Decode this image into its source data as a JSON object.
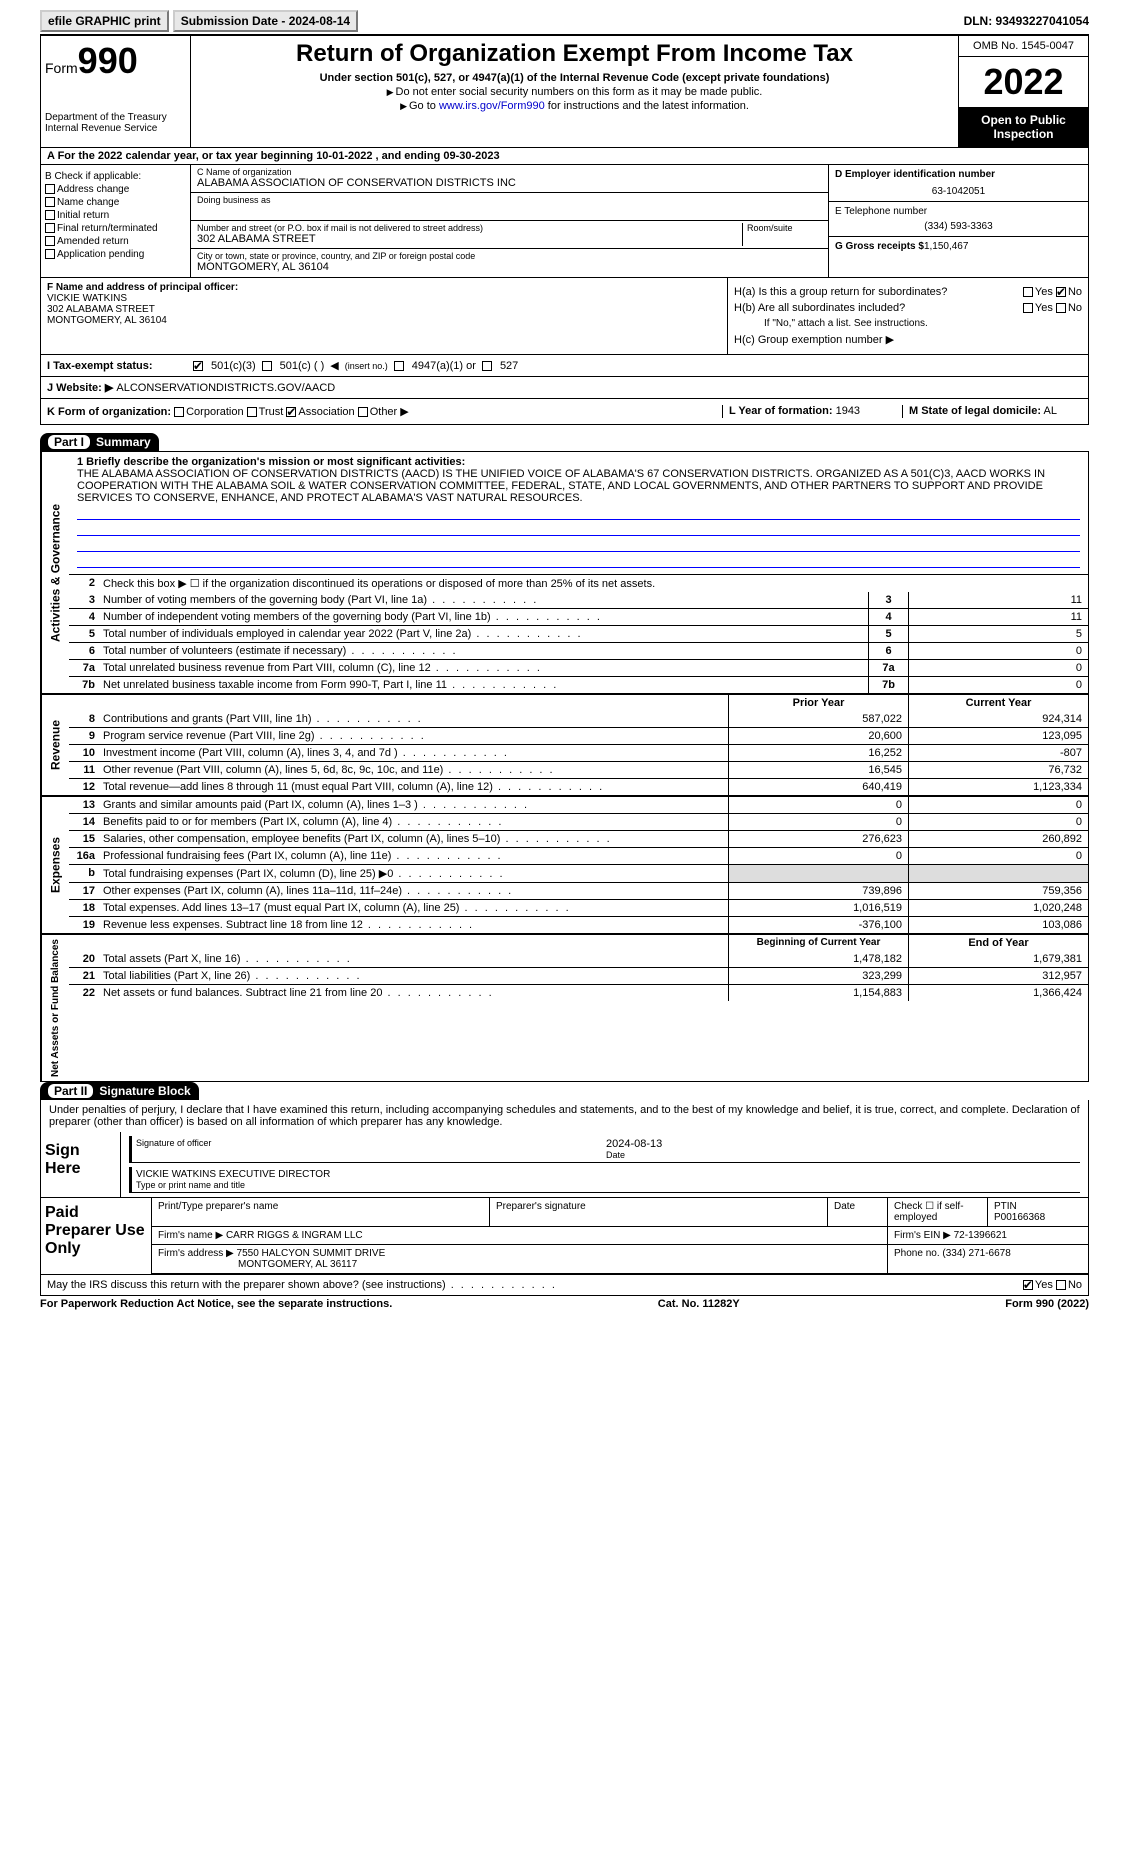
{
  "top": {
    "efile": "efile GRAPHIC print",
    "subdate_label": "Submission Date - 2024-08-14",
    "dln": "DLN: 93493227041054"
  },
  "header": {
    "form_word": "Form",
    "form_num": "990",
    "dept": "Department of the Treasury",
    "irs": "Internal Revenue Service",
    "title": "Return of Organization Exempt From Income Tax",
    "sub": "Under section 501(c), 527, or 4947(a)(1) of the Internal Revenue Code (except private foundations)",
    "note1": "Do not enter social security numbers on this form as it may be made public.",
    "note2_pre": "Go to ",
    "note2_link": "www.irs.gov/Form990",
    "note2_post": " for instructions and the latest information.",
    "omb": "OMB No. 1545-0047",
    "year": "2022",
    "open": "Open to Public Inspection"
  },
  "row_a": "A For the 2022 calendar year, or tax year beginning 10-01-2022     , and ending 09-30-2023",
  "col_b": {
    "hdr": "B Check if applicable:",
    "addr": "Address change",
    "name": "Name change",
    "init": "Initial return",
    "final": "Final return/terminated",
    "amend": "Amended return",
    "app": "Application pending"
  },
  "col_c": {
    "name_label": "C Name of organization",
    "name": "ALABAMA ASSOCIATION OF CONSERVATION DISTRICTS INC",
    "dba_label": "Doing business as",
    "street_label": "Number and street (or P.O. box if mail is not delivered to street address)",
    "street": "302 ALABAMA STREET",
    "room_label": "Room/suite",
    "city_label": "City or town, state or province, country, and ZIP or foreign postal code",
    "city": "MONTGOMERY, AL  36104"
  },
  "col_d": {
    "ein_label": "D Employer identification number",
    "ein": "63-1042051",
    "tel_label": "E Telephone number",
    "tel": "(334) 593-3363",
    "gross_label": "G Gross receipts $",
    "gross": "1,150,467"
  },
  "col_f": {
    "label": "F Name and address of principal officer:",
    "name": "VICKIE WATKINS",
    "street": "302 ALABAMA STREET",
    "city": "MONTGOMERY, AL  36104"
  },
  "col_h": {
    "ha": "H(a)  Is this a group return for subordinates?",
    "hb": "H(b)  Are all subordinates included?",
    "hb_note": "If \"No,\" attach a list. See instructions.",
    "hc": "H(c)  Group exemption number",
    "yes": "Yes",
    "no": "No"
  },
  "row_i": {
    "label": "I   Tax-exempt status:",
    "c3": "501(c)(3)",
    "c": "501(c) (   )",
    "ins": "(insert no.)",
    "a1": "4947(a)(1) or",
    "s527": "527"
  },
  "row_j": {
    "label": "J   Website:",
    "val": "ALCONSERVATIONDISTRICTS.GOV/AACD"
  },
  "row_k": {
    "label": "K Form of organization:",
    "corp": "Corporation",
    "trust": "Trust",
    "assoc": "Association",
    "other": "Other",
    "year_label": "L Year of formation:",
    "year": "1943",
    "state_label": "M State of legal domicile:",
    "state": "AL"
  },
  "part1": {
    "hdr_part": "Part I",
    "hdr_title": "Summary",
    "line1_label": "1 Briefly describe the organization's mission or most significant activities:",
    "mission": "THE ALABAMA ASSOCIATION OF CONSERVATION DISTRICTS (AACD) IS THE UNIFIED VOICE OF ALABAMA'S 67 CONSERVATION DISTRICTS. ORGANIZED AS A 501(C)3, AACD WORKS IN COOPERATION WITH THE ALABAMA SOIL & WATER CONSERVATION COMMITTEE, FEDERAL, STATE, AND LOCAL GOVERNMENTS, AND OTHER PARTNERS TO SUPPORT AND PROVIDE SERVICES TO CONSERVE, ENHANCE, AND PROTECT ALABAMA'S VAST NATURAL RESOURCES.",
    "line2": "Check this box ▶ ☐  if the organization discontinued its operations or disposed of more than 25% of its net assets.",
    "vlabel_gov": "Activities & Governance",
    "vlabel_rev": "Revenue",
    "vlabel_exp": "Expenses",
    "vlabel_net": "Net Assets or Fund Balances",
    "gov": [
      {
        "n": "3",
        "d": "Number of voting members of the governing body (Part VI, line 1a)",
        "b": "3",
        "v": "11"
      },
      {
        "n": "4",
        "d": "Number of independent voting members of the governing body (Part VI, line 1b)",
        "b": "4",
        "v": "11"
      },
      {
        "n": "5",
        "d": "Total number of individuals employed in calendar year 2022 (Part V, line 2a)",
        "b": "5",
        "v": "5"
      },
      {
        "n": "6",
        "d": "Total number of volunteers (estimate if necessary)",
        "b": "6",
        "v": "0"
      },
      {
        "n": "7a",
        "d": "Total unrelated business revenue from Part VIII, column (C), line 12",
        "b": "7a",
        "v": "0"
      },
      {
        "n": "7b",
        "d": "Net unrelated business taxable income from Form 990-T, Part I, line 11",
        "b": "7b",
        "v": "0"
      }
    ],
    "col_prior": "Prior Year",
    "col_curr": "Current Year",
    "rev": [
      {
        "n": "8",
        "d": "Contributions and grants (Part VIII, line 1h)",
        "p": "587,022",
        "c": "924,314"
      },
      {
        "n": "9",
        "d": "Program service revenue (Part VIII, line 2g)",
        "p": "20,600",
        "c": "123,095"
      },
      {
        "n": "10",
        "d": "Investment income (Part VIII, column (A), lines 3, 4, and 7d )",
        "p": "16,252",
        "c": "-807"
      },
      {
        "n": "11",
        "d": "Other revenue (Part VIII, column (A), lines 5, 6d, 8c, 9c, 10c, and 11e)",
        "p": "16,545",
        "c": "76,732"
      },
      {
        "n": "12",
        "d": "Total revenue—add lines 8 through 11 (must equal Part VIII, column (A), line 12)",
        "p": "640,419",
        "c": "1,123,334"
      }
    ],
    "exp": [
      {
        "n": "13",
        "d": "Grants and similar amounts paid (Part IX, column (A), lines 1–3 )",
        "p": "0",
        "c": "0"
      },
      {
        "n": "14",
        "d": "Benefits paid to or for members (Part IX, column (A), line 4)",
        "p": "0",
        "c": "0"
      },
      {
        "n": "15",
        "d": "Salaries, other compensation, employee benefits (Part IX, column (A), lines 5–10)",
        "p": "276,623",
        "c": "260,892"
      },
      {
        "n": "16a",
        "d": "Professional fundraising fees (Part IX, column (A), line 11e)",
        "p": "0",
        "c": "0"
      },
      {
        "n": "b",
        "d": "Total fundraising expenses (Part IX, column (D), line 25) ▶0",
        "p": "",
        "c": "",
        "shade": true
      },
      {
        "n": "17",
        "d": "Other expenses (Part IX, column (A), lines 11a–11d, 11f–24e)",
        "p": "739,896",
        "c": "759,356"
      },
      {
        "n": "18",
        "d": "Total expenses. Add lines 13–17 (must equal Part IX, column (A), line 25)",
        "p": "1,016,519",
        "c": "1,020,248"
      },
      {
        "n": "19",
        "d": "Revenue less expenses. Subtract line 18 from line 12",
        "p": "-376,100",
        "c": "103,086"
      }
    ],
    "col_beg": "Beginning of Current Year",
    "col_end": "End of Year",
    "net": [
      {
        "n": "20",
        "d": "Total assets (Part X, line 16)",
        "p": "1,478,182",
        "c": "1,679,381"
      },
      {
        "n": "21",
        "d": "Total liabilities (Part X, line 26)",
        "p": "323,299",
        "c": "312,957"
      },
      {
        "n": "22",
        "d": "Net assets or fund balances. Subtract line 21 from line 20",
        "p": "1,154,883",
        "c": "1,366,424"
      }
    ]
  },
  "part2": {
    "hdr_part": "Part II",
    "hdr_title": "Signature Block",
    "decl": "Under penalties of perjury, I declare that I have examined this return, including accompanying schedules and statements, and to the best of my knowledge and belief, it is true, correct, and complete. Declaration of preparer (other than officer) is based on all information of which preparer has any knowledge.",
    "sign_here": "Sign Here",
    "sig_off": "Signature of officer",
    "sig_date_label": "Date",
    "sig_date": "2024-08-13",
    "officer": "VICKIE WATKINS  EXECUTIVE DIRECTOR",
    "officer_label": "Type or print name and title",
    "paid": "Paid Preparer Use Only",
    "prep_name_label": "Print/Type preparer's name",
    "prep_sig_label": "Preparer's signature",
    "date_label": "Date",
    "check_label": "Check ☐ if self-employed",
    "ptin_label": "PTIN",
    "ptin": "P00166368",
    "firm_name_label": "Firm's name   ▶",
    "firm_name": "CARR RIGGS & INGRAM LLC",
    "firm_ein_label": "Firm's EIN ▶",
    "firm_ein": "72-1396621",
    "firm_addr_label": "Firm's address ▶",
    "firm_addr1": "7550 HALCYON SUMMIT DRIVE",
    "firm_addr2": "MONTGOMERY, AL  36117",
    "phone_label": "Phone no.",
    "phone": "(334) 271-6678",
    "discuss": "May the IRS discuss this return with the preparer shown above? (see instructions)",
    "yes": "Yes",
    "no": "No"
  },
  "bottom": {
    "left": "For Paperwork Reduction Act Notice, see the separate instructions.",
    "mid": "Cat. No. 11282Y",
    "right": "Form 990 (2022)"
  }
}
